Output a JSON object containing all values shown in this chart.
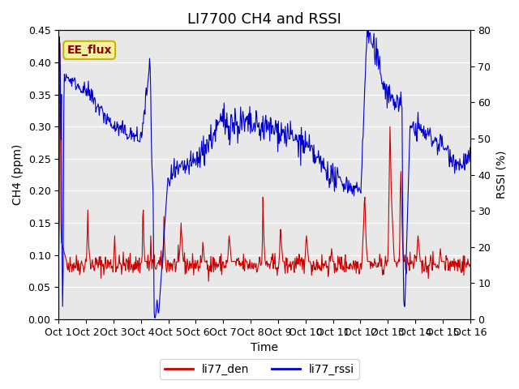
{
  "title": "LI7700 CH4 and RSSI",
  "xlabel": "Time",
  "ylabel_left": "CH4 (ppm)",
  "ylabel_right": "RSSI (%)",
  "ylim_left": [
    0.0,
    0.45
  ],
  "ylim_right": [
    0,
    80
  ],
  "yticks_left": [
    0.0,
    0.05,
    0.1,
    0.15,
    0.2,
    0.25,
    0.3,
    0.35,
    0.4,
    0.45
  ],
  "yticks_right": [
    0,
    10,
    20,
    30,
    40,
    50,
    60,
    70,
    80
  ],
  "xtick_labels": [
    "Oct 1",
    "Oct 2",
    "Oct 3",
    "Oct 4",
    "Oct 5",
    "Oct 6",
    "Oct 7",
    "Oct 8",
    "Oct 9",
    "Oct 10",
    "Oct 11",
    "Oct 12",
    "Oct 13",
    "Oct 14",
    "Oct 15",
    "Oct 16"
  ],
  "annotation_text": "EE_flux",
  "annotation_bg": "#f5f0a0",
  "annotation_border": "#c8b400",
  "color_ch4": "#cc0000",
  "color_rssi": "#0000cc",
  "legend_labels": [
    "li77_den",
    "li77_rssi"
  ],
  "background_color": "#e8e8e8",
  "title_fontsize": 13,
  "axis_label_fontsize": 10,
  "tick_fontsize": 9
}
